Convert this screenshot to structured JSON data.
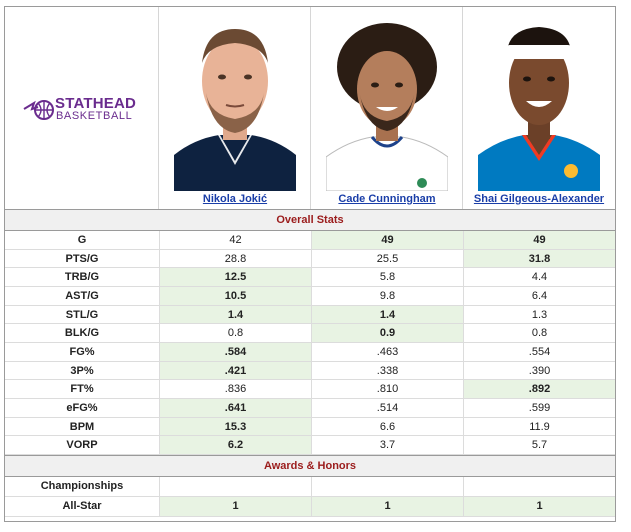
{
  "brand": {
    "line1": "STATHEAD",
    "line2": "BASKETBALL",
    "color": "#6a2c8e"
  },
  "players": [
    {
      "name": "Nikola Jokić",
      "jersey": "#0E2240"
    },
    {
      "name": "Cade Cunningham",
      "jersey": "#FFFFFF"
    },
    {
      "name": "Shai Gilgeous-Alexander",
      "jersey": "#007AC1"
    }
  ],
  "sections": {
    "overall": "Overall Stats",
    "awards": "Awards & Honors"
  },
  "stats": [
    {
      "label": "G",
      "values": [
        "42",
        "49",
        "49"
      ],
      "best": [
        false,
        true,
        true
      ]
    },
    {
      "label": "PTS/G",
      "values": [
        "28.8",
        "25.5",
        "31.8"
      ],
      "best": [
        false,
        false,
        true
      ]
    },
    {
      "label": "TRB/G",
      "values": [
        "12.5",
        "5.8",
        "4.4"
      ],
      "best": [
        true,
        false,
        false
      ]
    },
    {
      "label": "AST/G",
      "values": [
        "10.5",
        "9.8",
        "6.4"
      ],
      "best": [
        true,
        false,
        false
      ]
    },
    {
      "label": "STL/G",
      "values": [
        "1.4",
        "1.4",
        "1.3"
      ],
      "best": [
        true,
        true,
        false
      ]
    },
    {
      "label": "BLK/G",
      "values": [
        "0.8",
        "0.9",
        "0.8"
      ],
      "best": [
        false,
        true,
        false
      ]
    },
    {
      "label": "FG%",
      "values": [
        ".584",
        ".463",
        ".554"
      ],
      "best": [
        true,
        false,
        false
      ]
    },
    {
      "label": "3P%",
      "values": [
        ".421",
        ".338",
        ".390"
      ],
      "best": [
        true,
        false,
        false
      ]
    },
    {
      "label": "FT%",
      "values": [
        ".836",
        ".810",
        ".892"
      ],
      "best": [
        false,
        false,
        true
      ]
    },
    {
      "label": "eFG%",
      "values": [
        ".641",
        ".514",
        ".599"
      ],
      "best": [
        true,
        false,
        false
      ]
    },
    {
      "label": "BPM",
      "values": [
        "15.3",
        "6.6",
        "11.9"
      ],
      "best": [
        true,
        false,
        false
      ]
    },
    {
      "label": "VORP",
      "values": [
        "6.2",
        "3.7",
        "5.7"
      ],
      "best": [
        true,
        false,
        false
      ]
    }
  ],
  "awards": [
    {
      "label": "Championships",
      "values": [
        "",
        "",
        ""
      ],
      "best": [
        false,
        false,
        false
      ]
    },
    {
      "label": "All-Star",
      "values": [
        "1",
        "1",
        "1"
      ],
      "best": [
        true,
        true,
        true
      ]
    }
  ],
  "colors": {
    "best_bg": "#e8f3e3",
    "section_text": "#9b1c1c",
    "link": "#1a3ea8"
  }
}
